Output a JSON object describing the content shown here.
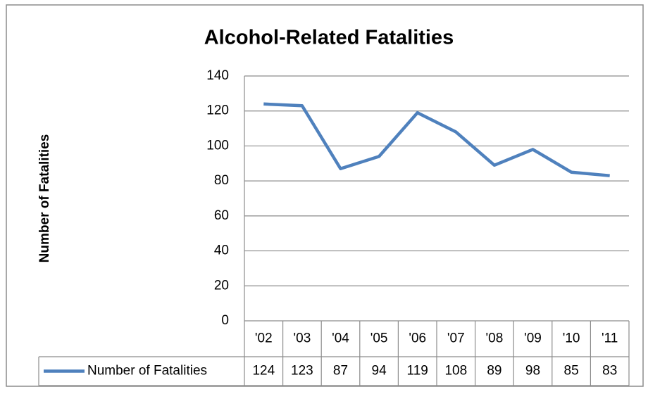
{
  "chart_data": {
    "type": "line",
    "title": "Alcohol-Related Fatalities",
    "y_label": "Number of Fatalities",
    "categories": [
      "'02",
      "'03",
      "'04",
      "'05",
      "'06",
      "'07",
      "'08",
      "'09",
      "'10",
      "'11"
    ],
    "series": [
      {
        "name": "Number of Fatalities",
        "color": "#4f81bd",
        "values": [
          124,
          123,
          87,
          94,
          119,
          108,
          89,
          98,
          85,
          83
        ]
      }
    ],
    "ylim": [
      0,
      140
    ],
    "yticks": [
      0,
      20,
      40,
      60,
      80,
      100,
      120,
      140
    ],
    "grid": true,
    "data_table": true
  }
}
